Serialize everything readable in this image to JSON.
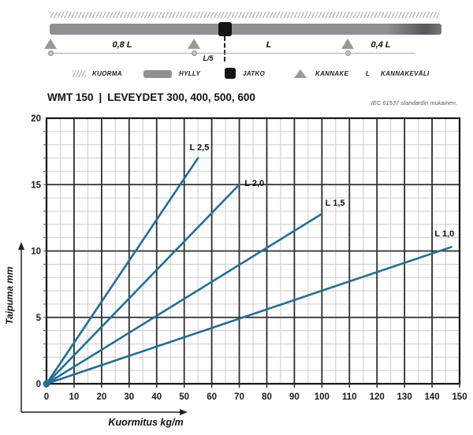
{
  "schematic": {
    "dimensions": {
      "span_left": "0,8 L",
      "joint_offset": "L/5",
      "span_mid": "L",
      "span_right": "0,4 L"
    },
    "legend": [
      {
        "icon": "load-hatch-icon",
        "label": "KUORMA"
      },
      {
        "icon": "shelf-bar-icon",
        "label": "HYLLY"
      },
      {
        "icon": "joint-square-icon",
        "label": "JATKO"
      },
      {
        "icon": "support-triangle-icon",
        "label": "KANNAKE"
      },
      {
        "icon": "letter-L",
        "symbol": "L",
        "label": "KANNAKEVÄLI"
      }
    ]
  },
  "header": {
    "model": "WMT 150",
    "separator": "|",
    "title": "LEVEYDET 300, 400, 500, 600",
    "note": "IEC 61537 standardin mukainen."
  },
  "chart_data": {
    "type": "line",
    "title": "WMT 150 | LEVEYDET 300, 400, 500, 600",
    "xlabel": "Kuormitus kg/m",
    "ylabel": "Taipuma mm",
    "xlim": [
      0,
      150
    ],
    "ylim": [
      0,
      20
    ],
    "x_major": 10,
    "x_minor": 5,
    "y_major": 5,
    "y_minor": 1,
    "grid": true,
    "line_color": "#266e90",
    "series": [
      {
        "name": "L 2,5",
        "points": [
          [
            0,
            0
          ],
          [
            55,
            17
          ]
        ],
        "label_at": [
          55.5,
          17.6
        ]
      },
      {
        "name": "L 2,0",
        "points": [
          [
            0,
            0
          ],
          [
            70,
            15
          ]
        ],
        "label_at": [
          75.5,
          14.9
        ]
      },
      {
        "name": "L 1,5",
        "points": [
          [
            0,
            0
          ],
          [
            100,
            12.8
          ]
        ],
        "label_at": [
          104.8,
          13.4
        ]
      },
      {
        "name": "L 1,0",
        "points": [
          [
            0,
            0
          ],
          [
            147,
            10.3
          ]
        ],
        "label_at": [
          144.5,
          11.1
        ]
      }
    ]
  }
}
